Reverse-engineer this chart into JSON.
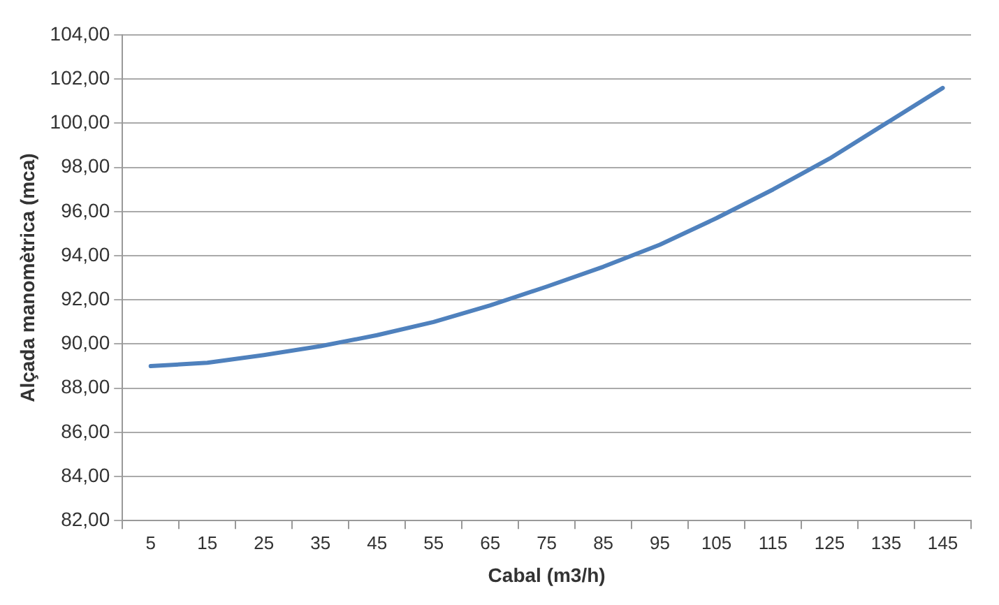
{
  "chart_data": {
    "type": "line",
    "xlabel": "Cabal (m3/h)",
    "ylabel": "Alçada manomètrica (mca)",
    "categories": [
      "5",
      "15",
      "25",
      "35",
      "45",
      "55",
      "65",
      "75",
      "85",
      "95",
      "105",
      "115",
      "125",
      "135",
      "145"
    ],
    "series": [
      {
        "color": "#4f81bd",
        "values": [
          89.0,
          89.15,
          89.5,
          89.9,
          90.4,
          91.0,
          91.75,
          92.6,
          93.5,
          94.5,
          95.7,
          97.0,
          98.4,
          100.0,
          101.6
        ]
      }
    ],
    "ylim": [
      82,
      104
    ],
    "yticks": [
      {
        "value": 82,
        "label": "82,00"
      },
      {
        "value": 84,
        "label": "84,00"
      },
      {
        "value": 86,
        "label": "86,00"
      },
      {
        "value": 88,
        "label": "88,00"
      },
      {
        "value": 90,
        "label": "90,00"
      },
      {
        "value": 92,
        "label": "92,00"
      },
      {
        "value": 94,
        "label": "94,00"
      },
      {
        "value": 96,
        "label": "96,00"
      },
      {
        "value": 98,
        "label": "98,00"
      },
      {
        "value": 100,
        "label": "100,00"
      },
      {
        "value": 102,
        "label": "102,00"
      },
      {
        "value": 104,
        "label": "104,00"
      }
    ],
    "grid": "y",
    "legend": false,
    "marker": "none",
    "line_style": "solid"
  }
}
